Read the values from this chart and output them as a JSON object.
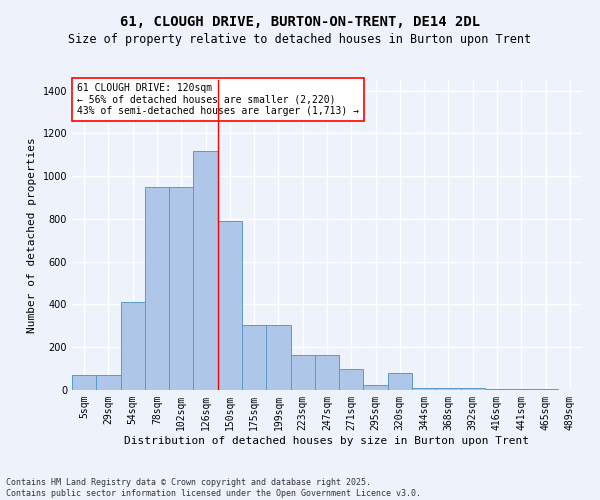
{
  "title": "61, CLOUGH DRIVE, BURTON-ON-TRENT, DE14 2DL",
  "subtitle": "Size of property relative to detached houses in Burton upon Trent",
  "xlabel": "Distribution of detached houses by size in Burton upon Trent",
  "ylabel": "Number of detached properties",
  "categories": [
    "5sqm",
    "29sqm",
    "54sqm",
    "78sqm",
    "102sqm",
    "126sqm",
    "150sqm",
    "175sqm",
    "199sqm",
    "223sqm",
    "247sqm",
    "271sqm",
    "295sqm",
    "320sqm",
    "344sqm",
    "368sqm",
    "392sqm",
    "416sqm",
    "441sqm",
    "465sqm",
    "489sqm"
  ],
  "values": [
    70,
    70,
    410,
    950,
    950,
    1120,
    790,
    305,
    305,
    165,
    165,
    100,
    25,
    80,
    10,
    10,
    10,
    5,
    5,
    3,
    2
  ],
  "bar_color": "#aec6e8",
  "bar_edge_color": "#5a9ac9",
  "red_line_index": 5,
  "annotation_line1": "61 CLOUGH DRIVE: 120sqm",
  "annotation_line2": "← 56% of detached houses are smaller (2,220)",
  "annotation_line3": "43% of semi-detached houses are larger (1,713) →",
  "annotation_box_color": "white",
  "annotation_box_edge": "red",
  "ylim": [
    0,
    1450
  ],
  "yticks": [
    0,
    200,
    400,
    600,
    800,
    1000,
    1200,
    1400
  ],
  "footer_line1": "Contains HM Land Registry data © Crown copyright and database right 2025.",
  "footer_line2": "Contains public sector information licensed under the Open Government Licence v3.0.",
  "background_color": "#eef2fb",
  "grid_color": "white",
  "title_fontsize": 10,
  "subtitle_fontsize": 8.5,
  "axis_label_fontsize": 8,
  "tick_fontsize": 7,
  "annotation_fontsize": 7,
  "footer_fontsize": 6
}
